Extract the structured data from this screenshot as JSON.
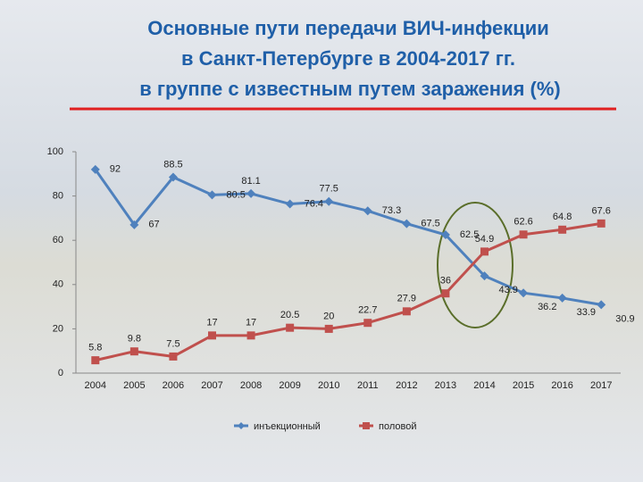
{
  "chart_data": {
    "type": "line",
    "title": [
      "Основные пути передачи ВИЧ-инфекции",
      "в Санкт-Петербурге в 2004-2017 гг.",
      "в группе с известным путем заражения (%)"
    ],
    "categories": [
      "2004",
      "2005",
      "2006",
      "2007",
      "2008",
      "2009",
      "2010",
      "2011",
      "2012",
      "2013",
      "2014",
      "2015",
      "2016",
      "2017"
    ],
    "series": [
      {
        "name": "инъекционный",
        "color": "#4f81bd",
        "values": [
          92,
          67,
          88.5,
          80.5,
          81.1,
          76.4,
          77.5,
          73.3,
          67.5,
          62.5,
          43.9,
          36.2,
          33.9,
          30.9
        ]
      },
      {
        "name": "половой",
        "color": "#c0504d",
        "values": [
          5.8,
          9.8,
          7.5,
          17,
          17,
          20.5,
          20,
          22.7,
          27.9,
          36,
          54.9,
          62.6,
          64.8,
          67.6
        ]
      }
    ],
    "ylim": [
      0,
      100
    ],
    "yticks": [
      0,
      20,
      40,
      60,
      80,
      100
    ],
    "grid": false,
    "legend": "bottom"
  }
}
